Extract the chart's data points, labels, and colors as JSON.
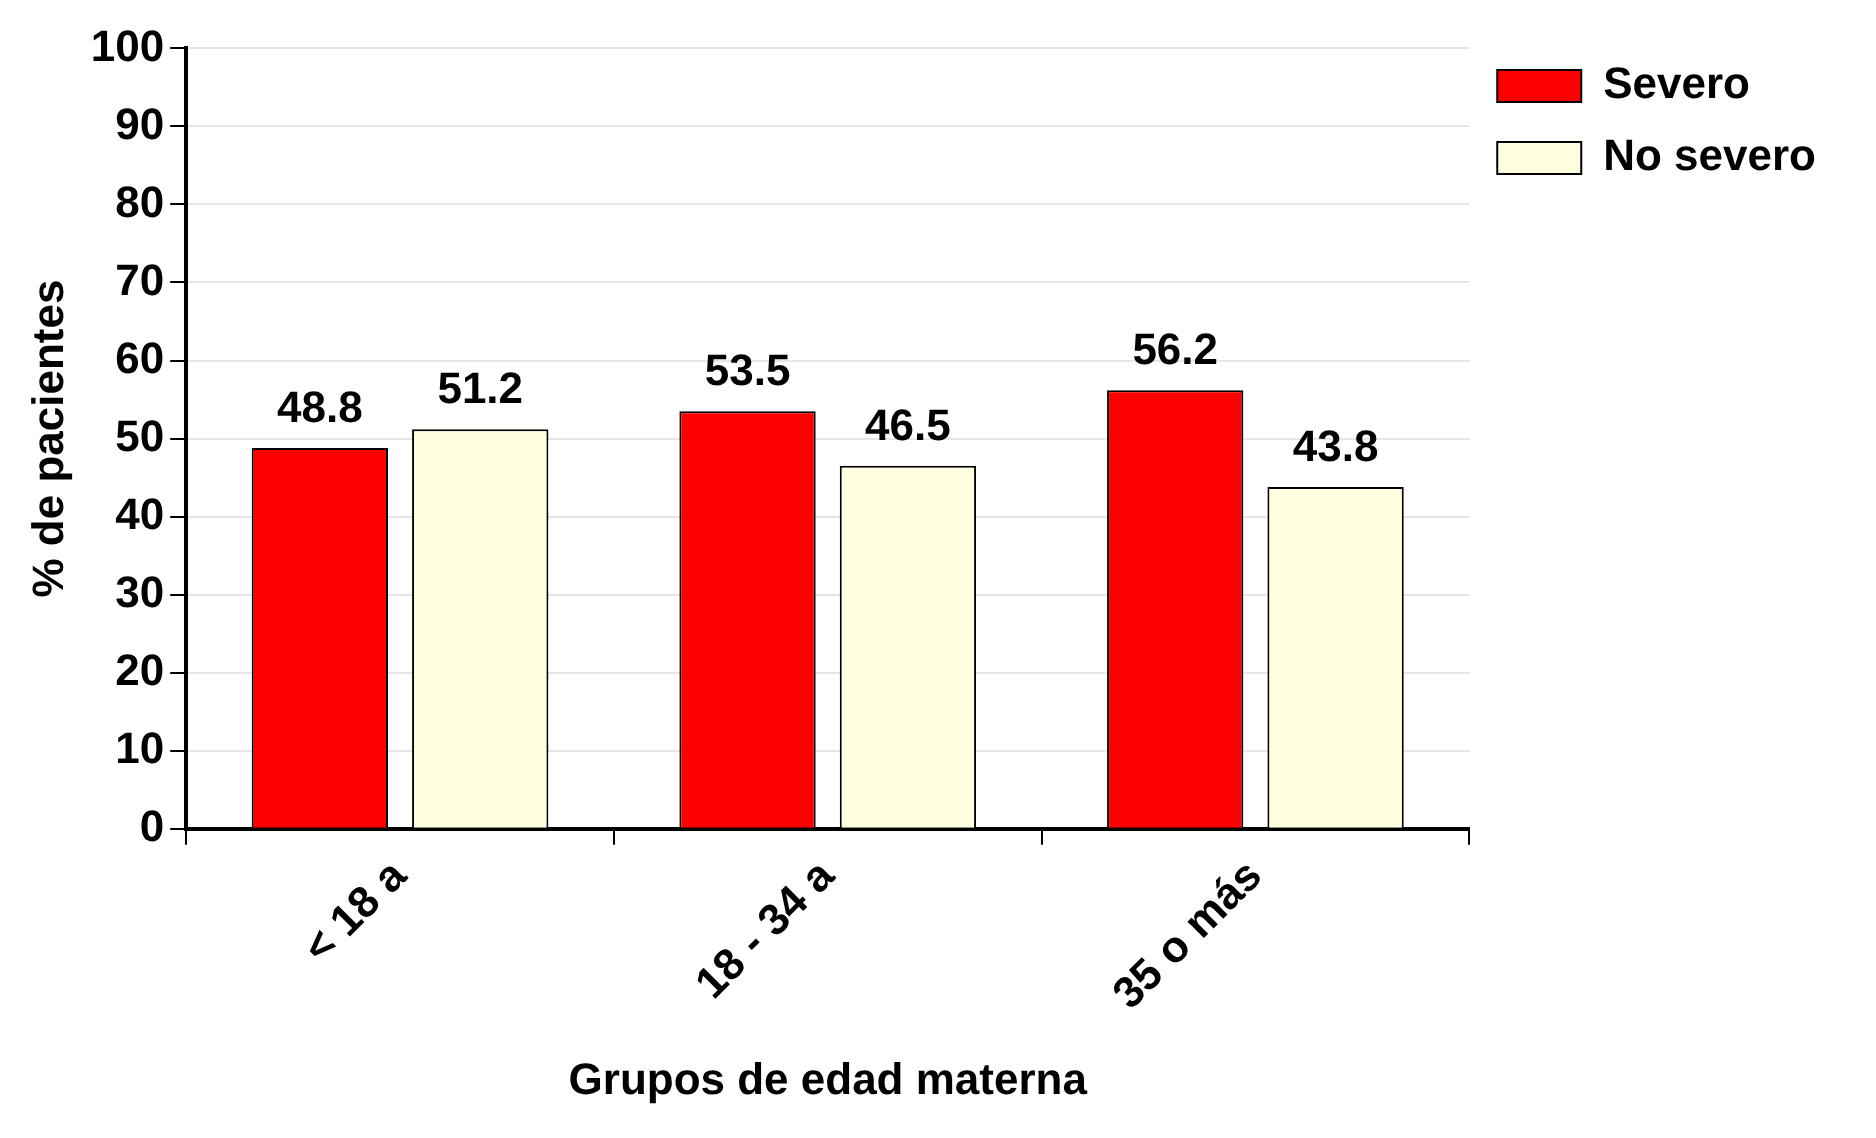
{
  "chart_data": {
    "type": "bar",
    "xlabel": "Grupos de edad materna",
    "ylabel": "% de pacientes",
    "categories": [
      "< 18 a",
      "18 - 34 a",
      "35 o más"
    ],
    "series": [
      {
        "name": "Severo",
        "color": "#ff0000",
        "values": [
          48.8,
          53.5,
          56.2
        ]
      },
      {
        "name": "No severo",
        "color": "#ffffe0",
        "values": [
          51.2,
          46.5,
          43.8
        ]
      }
    ],
    "ylim": [
      0,
      100
    ],
    "yticks": [
      0,
      10,
      20,
      30,
      40,
      50,
      60,
      70,
      80,
      90,
      100
    ],
    "grid": "y",
    "legend": "top right",
    "data_labels": true
  }
}
